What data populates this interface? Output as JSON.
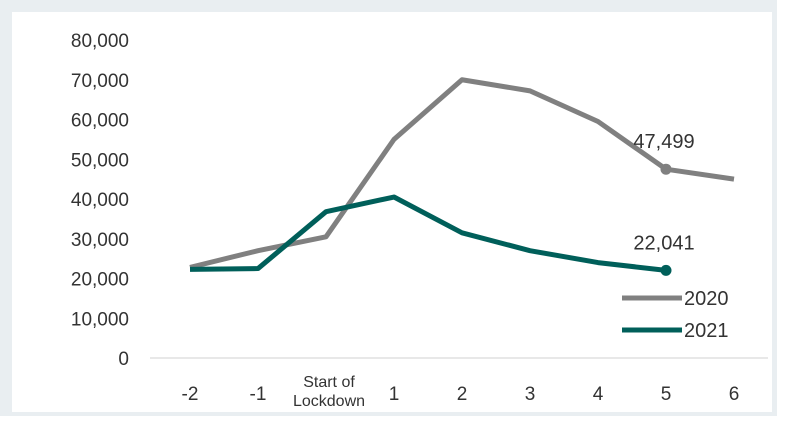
{
  "chart_data": {
    "type": "line",
    "x": [
      "-2",
      "-1",
      "Start of Lockdown",
      "1",
      "2",
      "3",
      "4",
      "5",
      "6"
    ],
    "x_tick_labels": [
      "-2",
      "-1",
      "1",
      "2",
      "3",
      "4",
      "5",
      "6"
    ],
    "start_label": [
      "Start of",
      "Lockdown"
    ],
    "y_ticks": [
      "0",
      "10,000",
      "20,000",
      "30,000",
      "40,000",
      "50,000",
      "60,000",
      "70,000",
      "80,000"
    ],
    "ylim": [
      0,
      80000
    ],
    "grid": false,
    "legend_position": "bottom-right",
    "series": [
      {
        "name": "2020",
        "color": "#808080",
        "values": [
          22800,
          27000,
          30500,
          55000,
          70000,
          67200,
          59500,
          47499,
          45000
        ]
      },
      {
        "name": "2021",
        "color": "#005f5a",
        "values": [
          22300,
          22500,
          36800,
          40500,
          31500,
          27000,
          24000,
          22041,
          null
        ]
      }
    ],
    "annotations": [
      {
        "series": "2020",
        "x": "5",
        "text": "47,499"
      },
      {
        "series": "2021",
        "x": "5",
        "text": "22,041"
      }
    ]
  }
}
